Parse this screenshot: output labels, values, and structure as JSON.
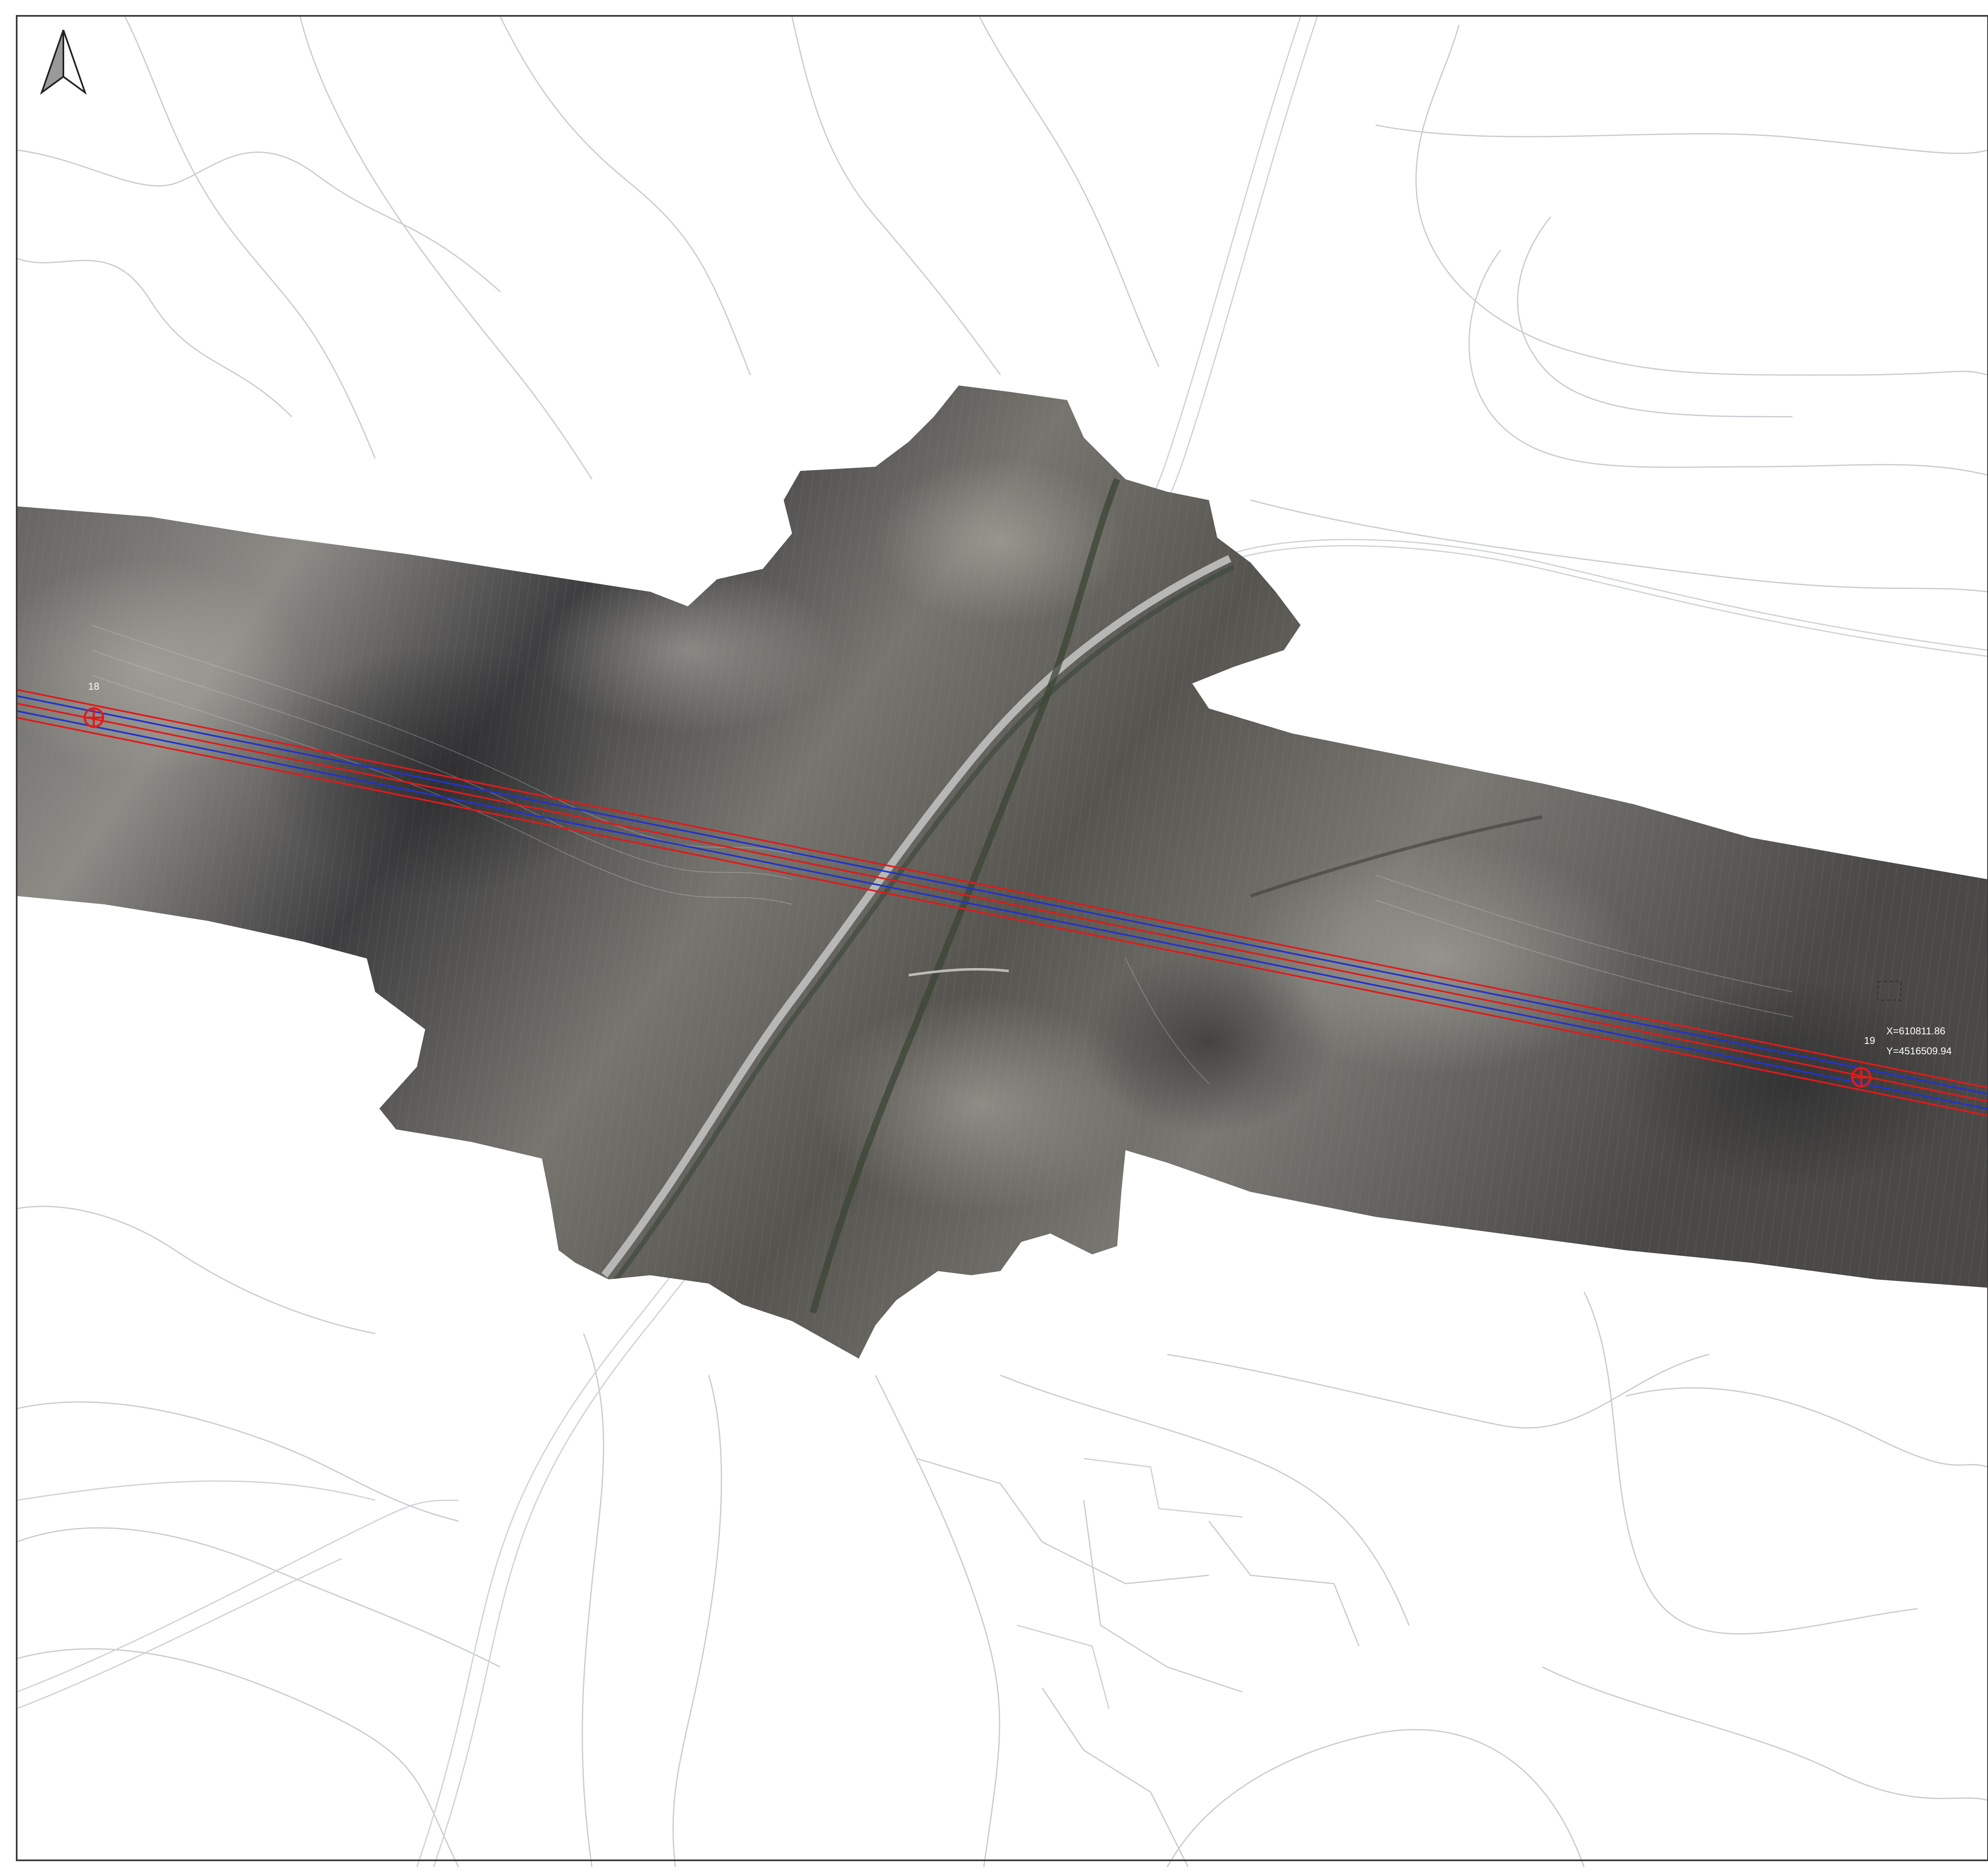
{
  "map": {
    "north_arrow": {
      "icon": "north-arrow-icon"
    },
    "towers": [
      {
        "id": "tower-18",
        "label": "18"
      },
      {
        "id": "tower-19",
        "label": "19",
        "coord_x": "X=610811.86",
        "coord_y": "Y=4516509.94"
      }
    ],
    "colors": {
      "background": "#ffffff",
      "frame": "#3a3a3a",
      "contour": "#c9ccd0",
      "orthophoto_dark": "#3d3d3f",
      "orthophoto_mid": "#6e6d6a",
      "orthophoto_light": "#8f8d88",
      "line_red": "#e01a1a",
      "line_blue": "#2233cc",
      "label_text": "#ffffff"
    }
  }
}
